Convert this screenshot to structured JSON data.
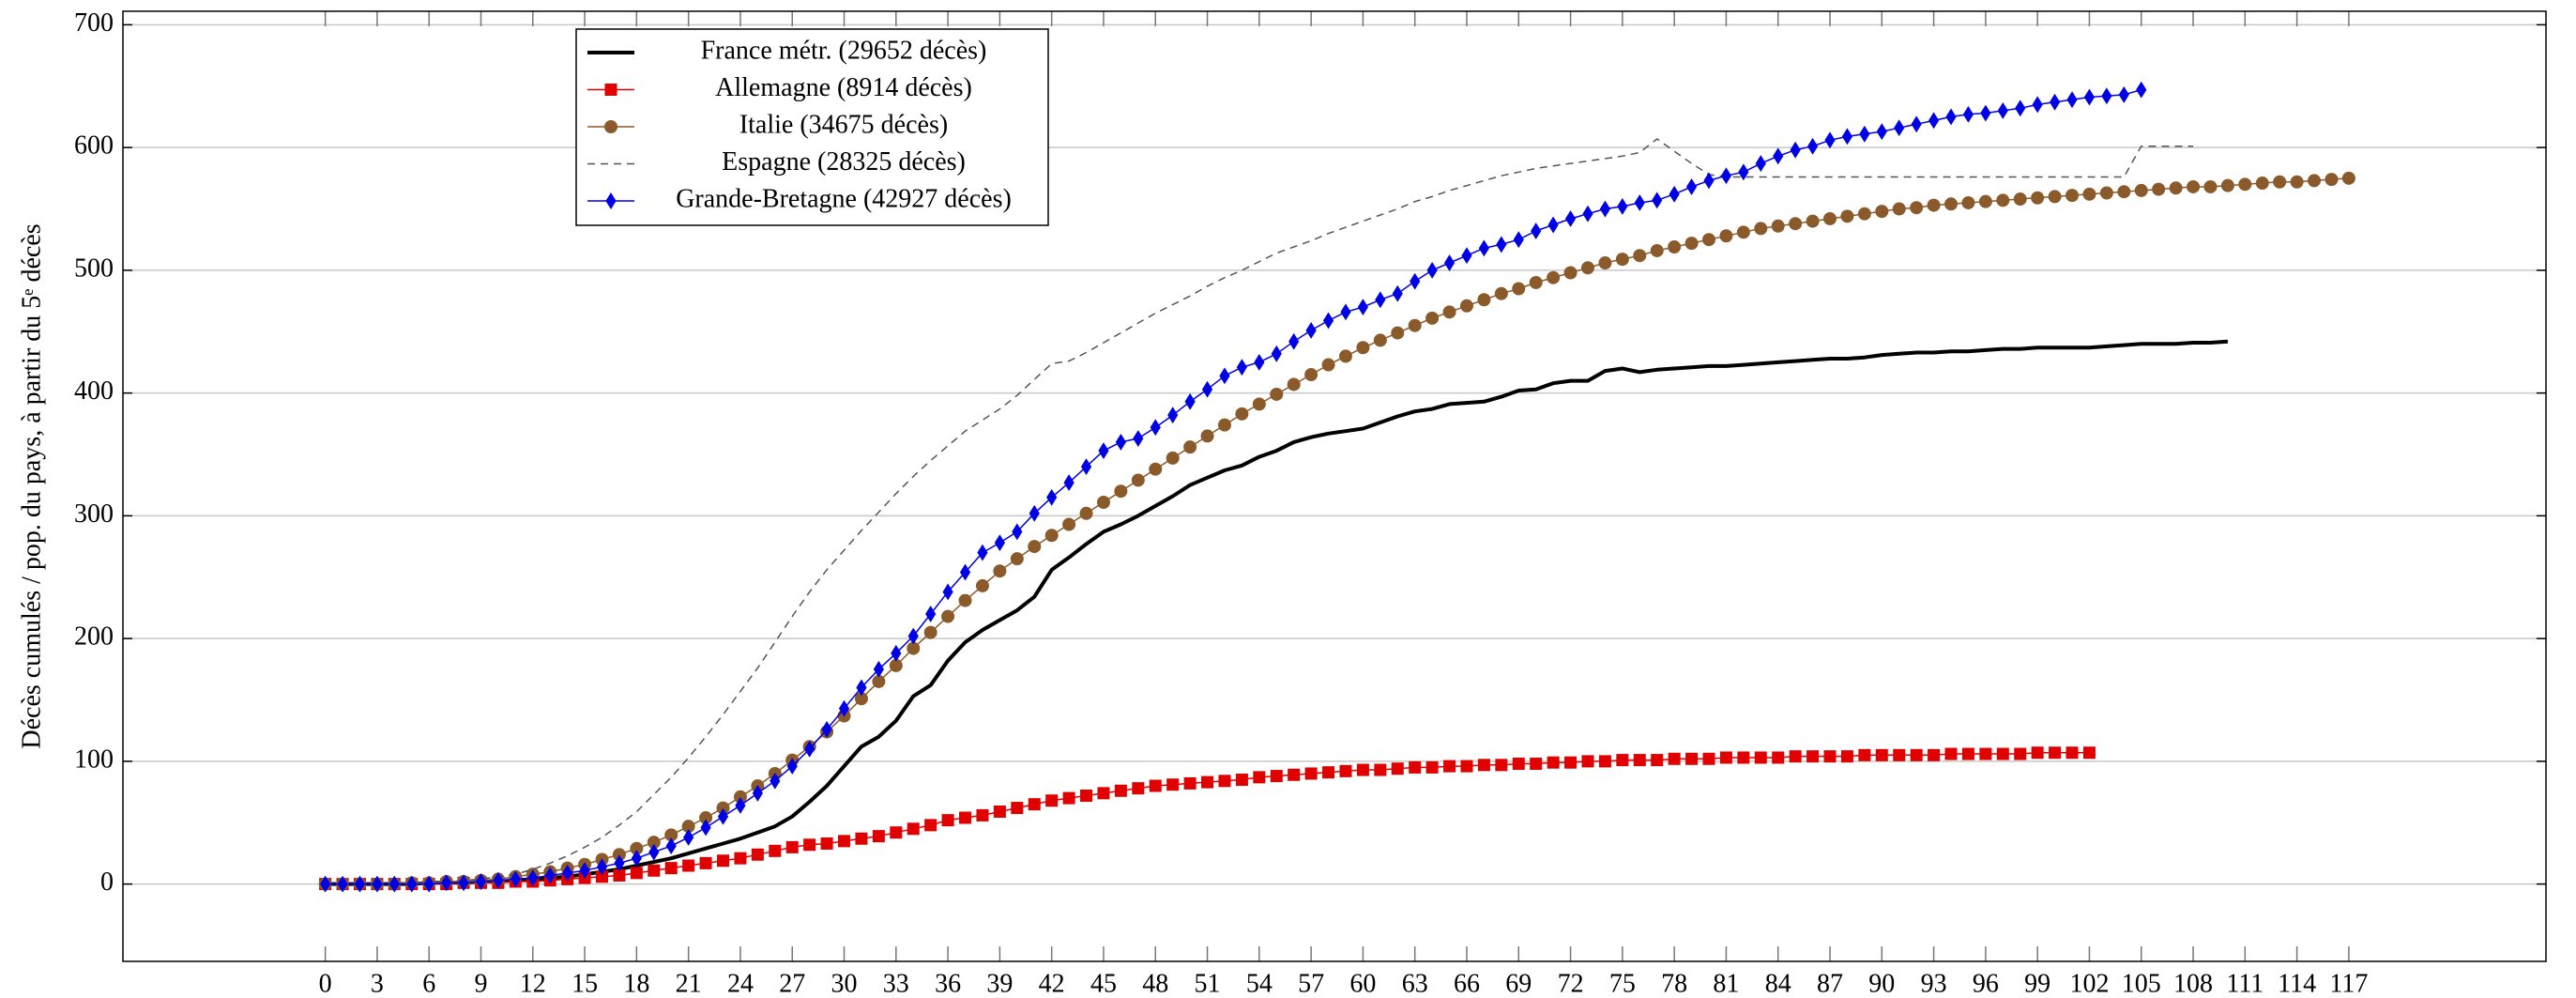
{
  "chart_data": {
    "type": "line",
    "ylabel": "Décès cumulés / pop. du pays, à partir du 5ᵉ décès",
    "xlim": [
      -11.7,
      128.4
    ],
    "ylim": [
      -63,
      711
    ],
    "xticks": [
      0,
      3,
      6,
      9,
      12,
      15,
      18,
      21,
      24,
      27,
      30,
      33,
      36,
      39,
      42,
      45,
      48,
      51,
      54,
      57,
      60,
      63,
      66,
      69,
      72,
      75,
      78,
      81,
      84,
      87,
      90,
      93,
      96,
      99,
      102,
      105,
      108,
      111,
      114,
      117
    ],
    "yticks": [
      0,
      100,
      200,
      300,
      400,
      500,
      600,
      700
    ],
    "grid": true,
    "legend_position": "upper left",
    "x": [
      0,
      1,
      2,
      3,
      4,
      5,
      6,
      7,
      8,
      9,
      10,
      11,
      12,
      13,
      14,
      15,
      16,
      17,
      18,
      19,
      20,
      21,
      22,
      23,
      24,
      25,
      26,
      27,
      28,
      29,
      30,
      31,
      32,
      33,
      34,
      35,
      36,
      37,
      38,
      39,
      40,
      41,
      42,
      43,
      44,
      45,
      46,
      47,
      48,
      49,
      50,
      51,
      52,
      53,
      54,
      55,
      56,
      57,
      58,
      59,
      60,
      61,
      62,
      63,
      64,
      65,
      66,
      67,
      68,
      69,
      70,
      71,
      72,
      73,
      74,
      75,
      76,
      77,
      78,
      79,
      80,
      81,
      82,
      83,
      84,
      85,
      86,
      87,
      88,
      89,
      90,
      91,
      92,
      93,
      94,
      95,
      96,
      97,
      98,
      99,
      100,
      101,
      102,
      103,
      104,
      105,
      106,
      107,
      108,
      109,
      110,
      111,
      112,
      113,
      114,
      115,
      116,
      117
    ],
    "series": [
      {
        "name": "France métr. (29652 décès)",
        "color": "#000000",
        "marker": "none",
        "dashed": false,
        "width": 4,
        "values": [
          0,
          0,
          0,
          0,
          0,
          0,
          1,
          1,
          1,
          2,
          2,
          3,
          4,
          5,
          6,
          8,
          10,
          12,
          15,
          18,
          21,
          25,
          29,
          33,
          37,
          42,
          47,
          55,
          67,
          80,
          96,
          112,
          120,
          133,
          153,
          162,
          182,
          197,
          207,
          215,
          223,
          234,
          256,
          266,
          277,
          287,
          293,
          300,
          308,
          316,
          325,
          331,
          337,
          341,
          348,
          353,
          360,
          364,
          367,
          369,
          371,
          376,
          381,
          385,
          387,
          391,
          392,
          393,
          397,
          402,
          403,
          408,
          410,
          410,
          418,
          420,
          417,
          419,
          420,
          421,
          422,
          422,
          423,
          424,
          425,
          426,
          427,
          428,
          428,
          429,
          431,
          432,
          433,
          433,
          434,
          434,
          435,
          436,
          436,
          437,
          437,
          437,
          437,
          438,
          439,
          440,
          440,
          440,
          441,
          441,
          442,
          null,
          null,
          null,
          null,
          null,
          null,
          null
        ]
      },
      {
        "name": "Allemagne (8914 décès)",
        "color": "#e00000",
        "marker": "square",
        "dashed": false,
        "width": 1.5,
        "values": [
          0,
          0,
          0,
          0,
          0,
          0,
          0,
          0,
          1,
          1,
          1,
          2,
          2,
          3,
          4,
          5,
          6,
          7,
          9,
          11,
          13,
          15,
          17,
          19,
          21,
          24,
          27,
          30,
          32,
          33,
          35,
          37,
          39,
          42,
          45,
          48,
          52,
          54,
          56,
          59,
          62,
          65,
          68,
          70,
          72,
          74,
          76,
          78,
          80,
          81,
          82,
          83,
          84,
          85,
          87,
          88,
          89,
          90,
          91,
          92,
          93,
          93,
          94,
          95,
          95,
          96,
          96,
          97,
          97,
          98,
          98,
          99,
          99,
          100,
          100,
          101,
          101,
          101,
          102,
          102,
          102,
          103,
          103,
          103,
          103,
          104,
          104,
          104,
          104,
          105,
          105,
          105,
          105,
          105,
          106,
          106,
          106,
          106,
          106,
          107,
          107,
          107,
          107,
          null,
          null,
          null,
          null,
          null,
          null,
          null,
          null,
          null,
          null,
          null,
          null,
          null,
          null,
          null
        ]
      },
      {
        "name": "Italie (34675 décès)",
        "color": "#8b5a2b",
        "marker": "circle",
        "dashed": false,
        "width": 1.5,
        "values": [
          0,
          0,
          0,
          0,
          0,
          1,
          1,
          2,
          2,
          3,
          4,
          6,
          8,
          10,
          13,
          16,
          20,
          24,
          29,
          34,
          40,
          47,
          54,
          62,
          71,
          80,
          90,
          101,
          112,
          124,
          137,
          151,
          165,
          178,
          192,
          205,
          218,
          231,
          243,
          255,
          265,
          275,
          284,
          293,
          302,
          311,
          320,
          329,
          338,
          347,
          356,
          365,
          374,
          383,
          391,
          399,
          407,
          415,
          423,
          430,
          437,
          443,
          449,
          455,
          461,
          466,
          471,
          476,
          481,
          485,
          490,
          494,
          498,
          502,
          506,
          509,
          512,
          516,
          519,
          522,
          525,
          528,
          531,
          534,
          536,
          538,
          540,
          542,
          544,
          546,
          548,
          550,
          551,
          553,
          554,
          555,
          556,
          557,
          558,
          559,
          560,
          561,
          562,
          563,
          564,
          565,
          566,
          567,
          568,
          568,
          569,
          570,
          571,
          572,
          572,
          573,
          574,
          575
        ]
      },
      {
        "name": "Espagne (28325 décès)",
        "color": "#555555",
        "marker": "none",
        "dashed": true,
        "width": 1.5,
        "values": [
          0,
          0,
          0,
          0,
          0,
          0,
          1,
          2,
          3,
          4,
          6,
          8,
          12,
          17,
          23,
          30,
          38,
          48,
          59,
          73,
          87,
          103,
          120,
          138,
          157,
          176,
          197,
          218,
          238,
          256,
          272,
          288,
          303,
          318,
          332,
          345,
          357,
          369,
          378,
          387,
          398,
          411,
          424,
          426,
          433,
          441,
          449,
          457,
          465,
          472,
          479,
          487,
          494,
          500,
          507,
          514,
          519,
          524,
          530,
          535,
          540,
          545,
          550,
          556,
          560,
          565,
          569,
          573,
          577,
          580,
          583,
          585,
          587,
          589,
          591,
          593,
          596,
          607,
          597,
          587,
          578,
          576,
          576,
          576,
          576,
          576,
          576,
          576,
          576,
          576,
          576,
          576,
          576,
          576,
          576,
          576,
          576,
          576,
          576,
          576,
          576,
          576,
          576,
          576,
          576,
          601,
          601,
          601,
          601,
          null,
          null,
          null,
          null,
          null,
          null,
          null,
          null,
          null
        ]
      },
      {
        "name": "Grande-Bretagne (42927 décès)",
        "color": "#0000e6",
        "marker": "diamond",
        "dashed": false,
        "width": 1.5,
        "values": [
          0,
          0,
          0,
          0,
          0,
          0,
          0,
          1,
          1,
          2,
          3,
          4,
          5,
          7,
          9,
          11,
          14,
          17,
          21,
          26,
          31,
          38,
          46,
          55,
          64,
          74,
          84,
          96,
          110,
          126,
          143,
          160,
          175,
          188,
          202,
          220,
          238,
          254,
          270,
          278,
          287,
          302,
          315,
          327,
          340,
          353,
          360,
          363,
          372,
          382,
          393,
          403,
          414,
          421,
          425,
          432,
          442,
          451,
          459,
          466,
          470,
          476,
          481,
          491,
          500,
          506,
          512,
          518,
          521,
          525,
          532,
          537,
          542,
          546,
          550,
          552,
          555,
          557,
          562,
          568,
          573,
          577,
          580,
          587,
          593,
          598,
          601,
          606,
          609,
          611,
          613,
          616,
          619,
          622,
          625,
          627,
          628,
          630,
          632,
          635,
          637,
          639,
          641,
          642,
          643,
          647,
          null,
          null,
          null,
          null,
          null,
          null,
          null,
          null,
          null,
          null,
          null,
          null
        ]
      }
    ]
  }
}
